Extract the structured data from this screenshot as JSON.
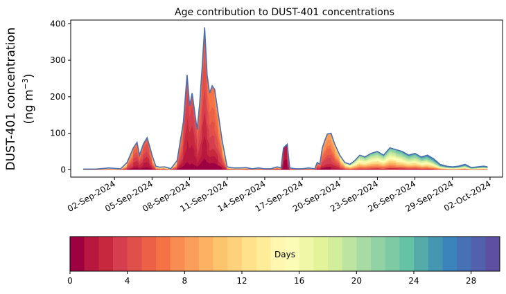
{
  "chart_data": {
    "type": "area",
    "title": "Age contribution to DUST-401 concentrations",
    "ylabel_line1": "DUST-401 concentration",
    "ylabel_line2": "(ng m",
    "ylabel_exp": "−3",
    "ylabel_close": ")",
    "ylim": [
      -20,
      410
    ],
    "yticks": [
      0,
      100,
      200,
      300,
      400
    ],
    "xlim": [
      -2.5,
      32.0
    ],
    "x_tick_labels": [
      "02-Sep-2024",
      "05-Sep-2024",
      "08-Sep-2024",
      "11-Sep-2024",
      "14-Sep-2024",
      "17-Sep-2024",
      "20-Sep-2024",
      "23-Sep-2024",
      "26-Sep-2024",
      "29-Sep-2024",
      "02-Oct-2024"
    ],
    "x_tick_days": [
      1,
      4,
      7,
      10,
      13,
      16,
      19,
      22,
      25,
      28,
      31
    ],
    "total_series": {
      "name": "total",
      "x": [
        -1.5,
        -0.5,
        0.5,
        1.5,
        2,
        2.5,
        2.8,
        3.0,
        3.3,
        3.6,
        3.8,
        4.0,
        4.3,
        4.6,
        5.0,
        5.5,
        6.0,
        6.5,
        6.8,
        7.0,
        7.2,
        7.4,
        7.6,
        7.8,
        8.0,
        8.2,
        8.4,
        8.6,
        8.8,
        9.0,
        9.3,
        9.6,
        10.0,
        10.3,
        10.6,
        11.0,
        11.5,
        12.0,
        12.5,
        13.0,
        13.5,
        14.0,
        14.3,
        14.5,
        14.8,
        15.0,
        15.5,
        16.0,
        16.5,
        17.0,
        17.2,
        17.4,
        17.6,
        17.8,
        18.0,
        18.3,
        18.6,
        19.0,
        19.4,
        19.8,
        20.2,
        20.6,
        21.0,
        21.5,
        22.0,
        22.5,
        23.0,
        23.5,
        24.0,
        24.5,
        25.0,
        25.5,
        26.0,
        26.5,
        27.0,
        27.5,
        28.0,
        28.5,
        29.0,
        29.5,
        30.0,
        30.5,
        30.8
      ],
      "values": [
        2,
        2,
        5,
        3,
        20,
        60,
        75,
        40,
        70,
        88,
        65,
        40,
        10,
        7,
        8,
        3,
        25,
        130,
        260,
        175,
        210,
        160,
        110,
        180,
        280,
        390,
        260,
        210,
        230,
        220,
        150,
        80,
        8,
        6,
        5,
        5,
        6,
        3,
        5,
        3,
        3,
        8,
        5,
        60,
        70,
        5,
        3,
        3,
        5,
        3,
        20,
        15,
        60,
        80,
        98,
        100,
        70,
        40,
        20,
        15,
        25,
        40,
        35,
        45,
        50,
        40,
        60,
        55,
        50,
        40,
        45,
        35,
        40,
        30,
        15,
        10,
        8,
        10,
        15,
        6,
        8,
        10,
        8
      ],
      "colorbar_days": 30,
      "fraction_age_lt_3d": [
        0.9,
        0.9,
        0.85,
        0.9,
        0.8,
        0.45,
        0.3,
        0.35,
        0.3,
        0.25,
        0.3,
        0.5,
        0.7,
        0.7,
        0.7,
        0.9,
        0.5,
        0.55,
        0.6,
        0.65,
        0.55,
        0.6,
        0.5,
        0.4,
        0.35,
        0.3,
        0.25,
        0.3,
        0.25,
        0.25,
        0.2,
        0.3,
        0.5,
        0.5,
        0.5,
        0.5,
        0.5,
        0.6,
        0.5,
        0.6,
        0.7,
        0.5,
        0.6,
        0.8,
        0.85,
        0.6,
        0.6,
        0.6,
        0.5,
        0.5,
        0.3,
        0.3,
        0.1,
        0.08,
        0.05,
        0.05,
        0.05,
        0.05,
        0.05,
        0.05,
        0.05,
        0.05,
        0.05,
        0.05,
        0.05,
        0.05,
        0.05,
        0.05,
        0.05,
        0.05,
        0.05,
        0.05,
        0.05,
        0.05,
        0.05,
        0.05,
        0.05,
        0.05,
        0.05,
        0.05,
        0.05,
        0.05,
        0.05
      ],
      "mean_age_days": [
        10,
        10,
        8,
        10,
        6,
        4,
        3.5,
        4,
        3.5,
        3,
        3.5,
        5,
        8,
        8,
        8,
        10,
        5,
        3,
        2.5,
        2.5,
        2.5,
        2.5,
        3,
        4,
        3.5,
        3,
        3.5,
        4,
        4,
        4,
        5,
        5,
        8,
        8,
        8,
        8,
        8,
        6,
        8,
        6,
        5,
        8,
        5,
        1.2,
        1,
        5,
        6,
        6,
        7,
        7,
        4,
        4.5,
        5,
        5,
        5,
        5,
        6,
        7,
        10,
        12,
        12,
        12,
        13,
        13,
        13,
        13,
        13,
        13,
        14,
        14,
        14,
        14,
        15,
        15,
        16,
        16,
        16,
        16,
        16,
        16,
        16,
        16,
        16
      ]
    },
    "colorbar": {
      "label": "Days",
      "min": 0,
      "max": 30,
      "ticks": [
        0,
        4,
        8,
        12,
        16,
        20,
        24,
        28
      ],
      "tick_labels": [
        "0",
        "4",
        "8",
        "12",
        "16",
        "20",
        "24",
        "28"
      ],
      "colors": [
        "#9e0142",
        "#b8173f",
        "#c7283d",
        "#d53e4f",
        "#e14f4a",
        "#eb6046",
        "#f47245",
        "#f88c52",
        "#fa9e5b",
        "#fdb163",
        "#fdc46e",
        "#fed27c",
        "#fee18a",
        "#feec99",
        "#fff6af",
        "#fbfdb7",
        "#f0f8a8",
        "#e2f39a",
        "#d2ed9b",
        "#bde4a0",
        "#a8dba4",
        "#93d2a4",
        "#7ecaa4",
        "#66c2a5",
        "#55aba8",
        "#4596b1",
        "#3b84bb",
        "#4671b4",
        "#5261ab",
        "#5e4fa2"
      ]
    },
    "grid": false,
    "legend": "colorbar-bottom"
  }
}
